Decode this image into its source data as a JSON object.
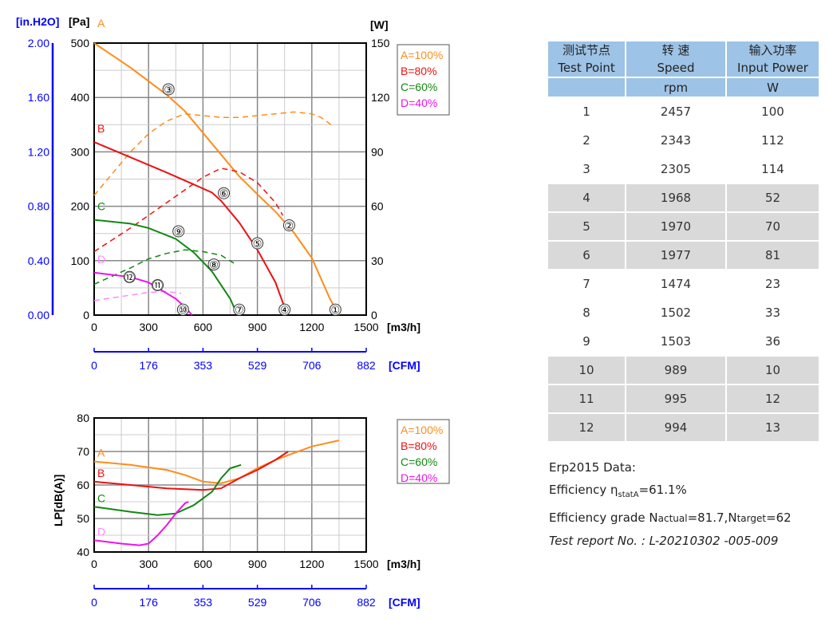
{
  "chart_data": [
    {
      "type": "line",
      "xlabel": "[m3/h]",
      "xlabel_secondary": "[CFM]",
      "ylabel": "[Pa]",
      "ylabel_secondary": "[in.H2O]",
      "ylabel_right": "[W]",
      "xlim": [
        0,
        1500
      ],
      "ylim": [
        0,
        500
      ],
      "y2lim": [
        0,
        150
      ],
      "grid": true,
      "legend": "top-right",
      "xticks": [
        0,
        300,
        600,
        900,
        1200,
        1500
      ],
      "yticks": [
        0,
        100,
        200,
        300,
        400,
        500
      ],
      "y_in_ticks": [
        "0.00",
        "0.40",
        "0.80",
        "1.20",
        "1.60",
        "2.00"
      ],
      "y2ticks": [
        0,
        30,
        60,
        90,
        120,
        150
      ],
      "cfm_ticks": [
        0,
        176,
        353,
        529,
        706,
        882
      ],
      "series": [
        {
          "name": "A=100%",
          "label": "A",
          "color": "#ff8c1a",
          "pressure": [
            [
              0,
              500
            ],
            [
              200,
              455
            ],
            [
              400,
              405
            ],
            [
              500,
              375
            ],
            [
              600,
              335
            ],
            [
              700,
              295
            ],
            [
              800,
              255
            ],
            [
              900,
              222
            ],
            [
              1000,
              190
            ],
            [
              1100,
              152
            ],
            [
              1200,
              105
            ],
            [
              1300,
              30
            ],
            [
              1350,
              0
            ]
          ],
          "power": [
            [
              0,
              66
            ],
            [
              100,
              78
            ],
            [
              200,
              90
            ],
            [
              300,
              100
            ],
            [
              400,
              107
            ],
            [
              500,
              111
            ],
            [
              600,
              110
            ],
            [
              700,
              109
            ],
            [
              800,
              109
            ],
            [
              900,
              110
            ],
            [
              1000,
              111
            ],
            [
              1100,
              112
            ],
            [
              1200,
              111
            ],
            [
              1250,
              109
            ],
            [
              1320,
              104
            ]
          ]
        },
        {
          "name": "B=80%",
          "label": "B",
          "color": "#ee1111",
          "pressure": [
            [
              0,
              318
            ],
            [
              200,
              290
            ],
            [
              400,
              262
            ],
            [
              550,
              240
            ],
            [
              650,
              225
            ],
            [
              700,
              210
            ],
            [
              800,
              170
            ],
            [
              900,
              120
            ],
            [
              1000,
              60
            ],
            [
              1065,
              0
            ]
          ],
          "power": [
            [
              0,
              35
            ],
            [
              200,
              48
            ],
            [
              400,
              62
            ],
            [
              600,
              76
            ],
            [
              700,
              81
            ],
            [
              800,
              79
            ],
            [
              900,
              73
            ],
            [
              1000,
              62
            ],
            [
              1040,
              55
            ]
          ]
        },
        {
          "name": "C=60%",
          "label": "C",
          "color": "#118811",
          "pressure": [
            [
              0,
              175
            ],
            [
              200,
              168
            ],
            [
              300,
              160
            ],
            [
              450,
              140
            ],
            [
              550,
              115
            ],
            [
              650,
              80
            ],
            [
              750,
              30
            ],
            [
              790,
              0
            ]
          ],
          "power": [
            [
              0,
              17
            ],
            [
              200,
              26
            ],
            [
              300,
              31
            ],
            [
              400,
              34
            ],
            [
              500,
              36
            ],
            [
              600,
              35
            ],
            [
              700,
              33
            ],
            [
              780,
              28
            ]
          ]
        },
        {
          "name": "D=40%",
          "label": "D",
          "color": "#ee11ee",
          "power_color": "#ff88ff",
          "pressure": [
            [
              0,
              78
            ],
            [
              200,
              70
            ],
            [
              300,
              60
            ],
            [
              400,
              40
            ],
            [
              450,
              30
            ],
            [
              500,
              15
            ],
            [
              540,
              0
            ]
          ],
          "power": [
            [
              0,
              8
            ],
            [
              200,
              11
            ],
            [
              300,
              12.5
            ],
            [
              400,
              13
            ],
            [
              480,
              12
            ]
          ]
        }
      ],
      "test_points": [
        {
          "id": "①",
          "x": 1330,
          "y": 10
        },
        {
          "id": "②",
          "x": 1075,
          "y": 165
        },
        {
          "id": "③",
          "x": 410,
          "y": 415
        },
        {
          "id": "④",
          "x": 1050,
          "y": 10
        },
        {
          "id": "⑤",
          "x": 900,
          "y": 132
        },
        {
          "id": "⑥",
          "x": 715,
          "y": 224
        },
        {
          "id": "⑦",
          "x": 800,
          "y": 10
        },
        {
          "id": "⑧",
          "x": 660,
          "y": 93
        },
        {
          "id": "⑨",
          "x": 465,
          "y": 154
        },
        {
          "id": "⑩",
          "x": 490,
          "y": 10
        },
        {
          "id": "⑪",
          "x": 350,
          "y": 55
        },
        {
          "id": "⑫",
          "x": 195,
          "y": 70
        }
      ]
    },
    {
      "type": "line",
      "xlabel": "[m3/h]",
      "xlabel_secondary": "[CFM]",
      "ylabel": "LP[dB(A)]",
      "xlim": [
        0,
        1500
      ],
      "ylim": [
        40,
        80
      ],
      "grid": true,
      "legend": "top-right",
      "xticks": [
        0,
        300,
        600,
        900,
        1200,
        1500
      ],
      "yticks": [
        40,
        50,
        60,
        70,
        80
      ],
      "cfm_ticks": [
        0,
        176,
        353,
        529,
        706,
        882
      ],
      "series": [
        {
          "name": "A=100%",
          "label": "A",
          "color": "#ff8c1a",
          "values": [
            [
              0,
              67
            ],
            [
              200,
              66
            ],
            [
              400,
              64.5
            ],
            [
              500,
              63
            ],
            [
              600,
              61
            ],
            [
              700,
              60.5
            ],
            [
              800,
              62
            ],
            [
              900,
              65
            ],
            [
              1000,
              67.5
            ],
            [
              1100,
              69.5
            ],
            [
              1200,
              71.5
            ],
            [
              1350,
              73.3
            ]
          ]
        },
        {
          "name": "B=80%",
          "label": "B",
          "color": "#ee1111",
          "values": [
            [
              0,
              61
            ],
            [
              200,
              60
            ],
            [
              400,
              59
            ],
            [
              600,
              58.5
            ],
            [
              700,
              59
            ],
            [
              800,
              62
            ],
            [
              900,
              64.5
            ],
            [
              1000,
              67.5
            ],
            [
              1070,
              70
            ]
          ]
        },
        {
          "name": "C=60%",
          "label": "C",
          "color": "#118811",
          "values": [
            [
              0,
              53.5
            ],
            [
              200,
              52
            ],
            [
              350,
              51
            ],
            [
              450,
              51.5
            ],
            [
              550,
              54
            ],
            [
              650,
              58
            ],
            [
              700,
              62
            ],
            [
              750,
              65
            ],
            [
              810,
              66
            ]
          ]
        },
        {
          "name": "D=40%",
          "label": "D",
          "color": "#ee11ee",
          "values": [
            [
              0,
              43.5
            ],
            [
              150,
              42.5
            ],
            [
              250,
              42
            ],
            [
              300,
              42.5
            ],
            [
              350,
              45
            ],
            [
              400,
              48
            ],
            [
              450,
              51.5
            ],
            [
              500,
              54.5
            ],
            [
              520,
              55
            ]
          ]
        }
      ]
    }
  ],
  "table": {
    "headers": [
      [
        "测试节点",
        "Test Point"
      ],
      [
        "转 速",
        "Speed"
      ],
      [
        "输入功率",
        "Input Power"
      ]
    ],
    "units": [
      "",
      "rpm",
      "W"
    ],
    "rows": [
      [
        "1",
        "2457",
        "100"
      ],
      [
        "2",
        "2343",
        "112"
      ],
      [
        "3",
        "2305",
        "114"
      ],
      [
        "4",
        "1968",
        "52"
      ],
      [
        "5",
        "1970",
        "70"
      ],
      [
        "6",
        "1977",
        "81"
      ],
      [
        "7",
        "1474",
        "23"
      ],
      [
        "8",
        "1502",
        "33"
      ],
      [
        "9",
        "1503",
        "36"
      ],
      [
        "10",
        "989",
        "10"
      ],
      [
        "11",
        "995",
        "12"
      ],
      [
        "12",
        "994",
        "13"
      ]
    ]
  },
  "erp": {
    "title": "Erp2015  Data:",
    "eff_label": "Efficiency η",
    "eff_sub": "statA",
    "eff_value": "=61.1%",
    "grade_label": "Efficiency grade  N",
    "grade_sub1": "actual",
    "grade_val1": "=81.7,N",
    "grade_sub2": "target",
    "grade_val2": "=62",
    "report": "Test report No.  : L-20210302 -005-009"
  }
}
